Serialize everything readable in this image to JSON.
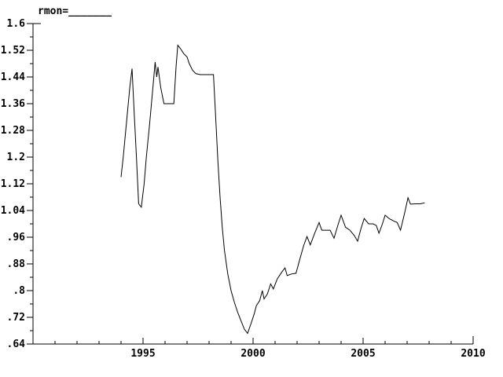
{
  "chart_data": {
    "type": "line",
    "title": "rmon=_______",
    "xlabel": "",
    "ylabel": "",
    "xlim": [
      1990,
      2010
    ],
    "ylim": [
      0.64,
      1.6
    ],
    "grid": false,
    "legend": "none",
    "background": "#ffffff",
    "line_color": "#000000",
    "axis_color": "#000000",
    "x_major_ticks": [
      1995,
      2000,
      2005,
      2010
    ],
    "x_tick_labels": [
      "1995",
      "2000",
      "2005",
      "2010"
    ],
    "x_minor_ticks": [
      1991,
      1992,
      1993,
      1994,
      1996,
      1997,
      1998,
      1999,
      2001,
      2002,
      2003,
      2004,
      2006,
      2007,
      2008,
      2009
    ],
    "y_major_ticks": [
      1.6,
      1.52,
      1.44,
      1.36,
      1.28,
      1.2,
      1.12,
      1.04,
      0.96,
      0.88,
      0.8,
      0.72,
      0.64
    ],
    "y_tick_labels": [
      "1.6",
      "1.52",
      "1.44",
      "1.36",
      "1.28",
      "1.2",
      "1.12",
      "1.04",
      ".96",
      ".88",
      ".8",
      ".72",
      ".64"
    ],
    "y_minor_ticks": [
      1.56,
      1.48,
      1.4,
      1.32,
      1.24,
      1.16,
      1.08,
      1.0,
      0.92,
      0.84,
      0.76,
      0.68
    ],
    "series": [
      {
        "name": "rmon",
        "x": [
          1994.0,
          1994.1,
          1994.2,
          1994.3,
          1994.4,
          1994.5,
          1994.6,
          1994.7,
          1994.8,
          1994.92,
          1995.05,
          1995.15,
          1995.3,
          1995.45,
          1995.55,
          1995.62,
          1995.68,
          1995.8,
          1995.95,
          1996.1,
          1996.25,
          1996.4,
          1996.5,
          1996.58,
          1996.7,
          1996.85,
          1997.0,
          1997.1,
          1997.25,
          1997.4,
          1997.6,
          1997.8,
          1998.0,
          1998.2,
          1998.3,
          1998.4,
          1998.5,
          1998.6,
          1998.7,
          1998.85,
          1999.0,
          1999.15,
          1999.3,
          1999.45,
          1999.6,
          1999.75,
          1999.9,
          2000.05,
          2000.15,
          2000.3,
          2000.42,
          2000.5,
          2000.65,
          2000.8,
          2000.92,
          2001.1,
          2001.3,
          2001.45,
          2001.55,
          2001.75,
          2001.95,
          2002.15,
          2002.3,
          2002.45,
          2002.6,
          2002.8,
          2003.0,
          2003.12,
          2003.3,
          2003.5,
          2003.68,
          2003.85,
          2004.0,
          2004.2,
          2004.4,
          2004.6,
          2004.75,
          2004.9,
          2005.05,
          2005.25,
          2005.45,
          2005.6,
          2005.72,
          2005.88,
          2006.0,
          2006.2,
          2006.4,
          2006.55,
          2006.7,
          2006.88,
          2007.04,
          2007.15,
          2007.4,
          2007.6,
          2007.8
        ],
        "y": [
          1.14,
          1.2,
          1.27,
          1.34,
          1.41,
          1.465,
          1.33,
          1.2,
          1.06,
          1.05,
          1.12,
          1.2,
          1.3,
          1.41,
          1.485,
          1.44,
          1.47,
          1.41,
          1.36,
          1.36,
          1.36,
          1.36,
          1.47,
          1.535,
          1.525,
          1.51,
          1.5,
          1.48,
          1.46,
          1.45,
          1.447,
          1.447,
          1.447,
          1.447,
          1.32,
          1.19,
          1.08,
          0.99,
          0.92,
          0.85,
          0.8,
          0.765,
          0.735,
          0.71,
          0.685,
          0.672,
          0.7,
          0.73,
          0.755,
          0.77,
          0.8,
          0.775,
          0.79,
          0.82,
          0.805,
          0.835,
          0.855,
          0.868,
          0.845,
          0.85,
          0.852,
          0.9,
          0.935,
          0.962,
          0.937,
          0.972,
          1.004,
          0.981,
          0.981,
          0.981,
          0.957,
          0.995,
          1.026,
          0.99,
          0.981,
          0.965,
          0.948,
          0.985,
          1.016,
          1.0,
          1.0,
          0.995,
          0.972,
          1.0,
          1.026,
          1.015,
          1.008,
          1.004,
          0.981,
          1.03,
          1.078,
          1.059,
          1.06,
          1.06,
          1.063
        ]
      }
    ]
  }
}
